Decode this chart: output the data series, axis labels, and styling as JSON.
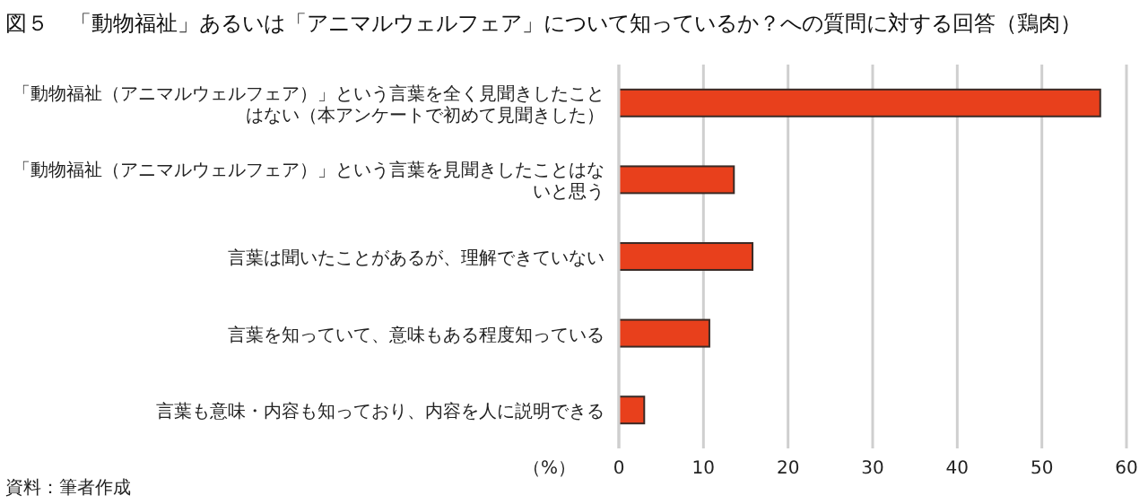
{
  "chart_data": {
    "type": "bar",
    "orientation": "horizontal",
    "title": "図５　「動物福祉」あるいは「アニマルウェルフェア」について知っているか？への質問に対する回答（鶏肉）",
    "categories": [
      "「動物福祉（アニマルウェルフェア）」という言葉を全く見聞きしたことはない（本アンケートで初めて見聞きした）",
      "「動物福祉（アニマルウェルフェア）」という言葉を見聞きしたことはないと思う",
      "言葉は聞いたことがあるが、理解できていない",
      "言葉を知っていて、意味もある程度知っている",
      "言葉も意味・内容も知っており、内容を人に説明できる"
    ],
    "values": [
      56.9,
      13.6,
      15.8,
      10.7,
      3.0
    ],
    "color": "#e8401c",
    "xlabel": "（%）",
    "xlim": [
      0,
      60
    ],
    "xticks": [
      0,
      10,
      20,
      30,
      40,
      50,
      60
    ],
    "grid": "x",
    "annotations": [
      "資料：筆者作成"
    ]
  }
}
